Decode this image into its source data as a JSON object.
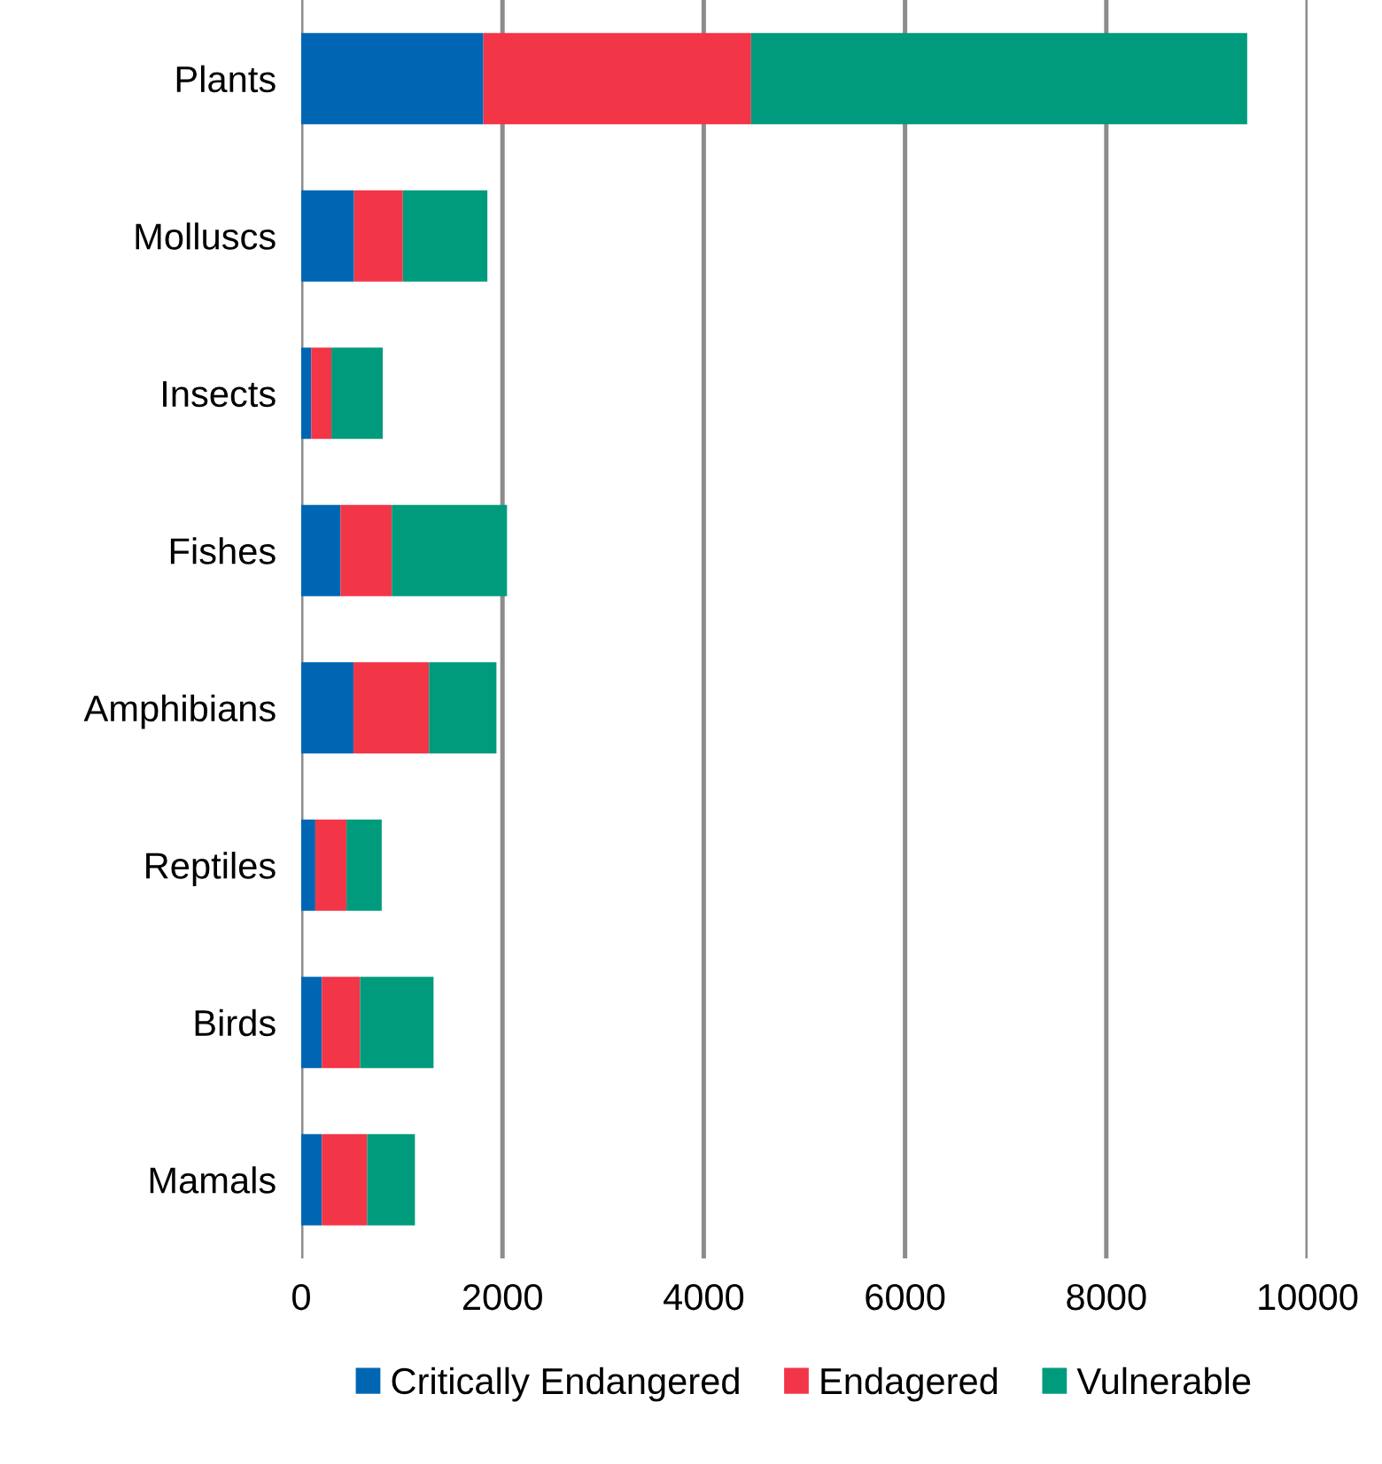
{
  "chart_data": {
    "type": "bar",
    "orientation": "horizontal",
    "stacked": true,
    "categories": [
      "Plants",
      "Molluscs",
      "Insects",
      "Fishes",
      "Amphibians",
      "Reptiles",
      "Birds",
      "Mamals"
    ],
    "series": [
      {
        "name": "Critically Endangered",
        "color": "#0066b3",
        "values": [
          1810,
          525,
          100,
          390,
          520,
          140,
          205,
          205
        ]
      },
      {
        "name": "Endagered",
        "color": "#f23547",
        "values": [
          2660,
          485,
          200,
          510,
          750,
          310,
          380,
          450
        ]
      },
      {
        "name": "Vulnerable",
        "color": "#009b7d",
        "values": [
          4930,
          840,
          510,
          1145,
          670,
          350,
          730,
          475
        ]
      }
    ],
    "xlim": [
      0,
      10000
    ],
    "xticks": [
      0,
      2000,
      4000,
      6000,
      8000,
      10000
    ],
    "grid": "x",
    "legend": "bottom"
  }
}
